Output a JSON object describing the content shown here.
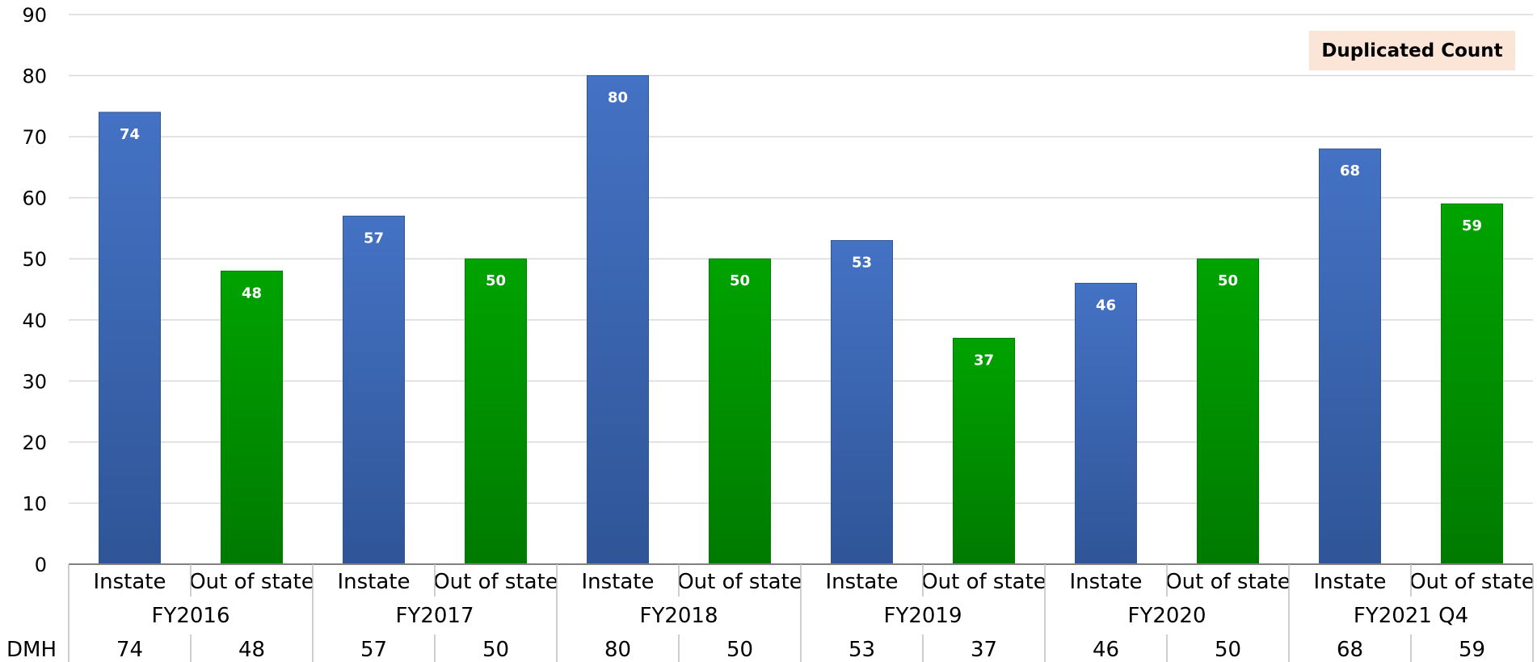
{
  "chart_data": {
    "type": "bar",
    "title": "",
    "xlabel": "",
    "ylabel": "",
    "ylim": [
      0,
      90
    ],
    "yticks": [
      0,
      10,
      20,
      30,
      40,
      50,
      60,
      70,
      80,
      90
    ],
    "grid": true,
    "annotation": "Duplicated Count",
    "groups": [
      {
        "name": "FY2016",
        "categories": [
          "Instate",
          "Out of state"
        ],
        "values": [
          74,
          48
        ]
      },
      {
        "name": "FY2017",
        "categories": [
          "Instate",
          "Out of state"
        ],
        "values": [
          57,
          50
        ]
      },
      {
        "name": "FY2018",
        "categories": [
          "Instate",
          "Out of state"
        ],
        "values": [
          80,
          50
        ]
      },
      {
        "name": "FY2019",
        "categories": [
          "Instate",
          "Out of state"
        ],
        "values": [
          53,
          37
        ]
      },
      {
        "name": "FY2020",
        "categories": [
          "Instate",
          "Out of state"
        ],
        "values": [
          46,
          50
        ]
      },
      {
        "name": "FY2021 Q4",
        "categories": [
          "Instate",
          "Out of state"
        ],
        "values": [
          68,
          59
        ]
      }
    ],
    "data_table": {
      "row_label": "DMH",
      "values": [
        74,
        48,
        57,
        50,
        80,
        50,
        53,
        37,
        46,
        50,
        68,
        59
      ]
    },
    "colors": {
      "Instate": [
        "#4472c4",
        "#2f5597"
      ],
      "Out of state": [
        "#00a300",
        "#007a00"
      ],
      "grid": "#d9d9d9",
      "axis": "#808080"
    }
  }
}
